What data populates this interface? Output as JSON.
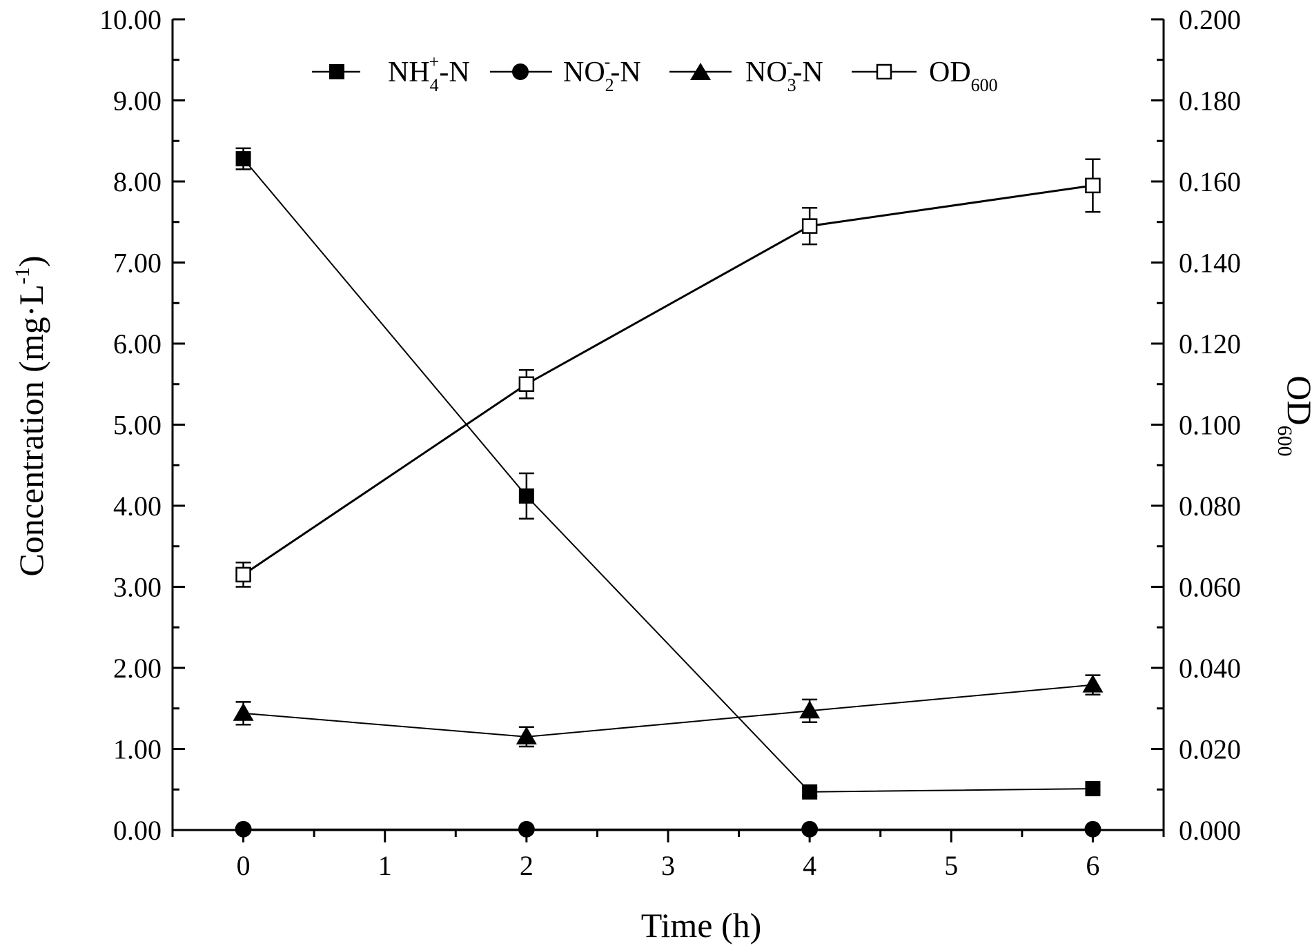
{
  "chart_data": {
    "type": "line",
    "x_axis": {
      "label": "Time (h)",
      "range": [
        -0.5,
        6.5
      ],
      "ticks": [
        0,
        1,
        2,
        3,
        4,
        5,
        6
      ],
      "tick_labels": [
        "0",
        "1",
        "2",
        "3",
        "4",
        "5",
        "6"
      ]
    },
    "y_axis_left": {
      "label_main": "Concentration (mg·L",
      "label_sup": "-1",
      "label_close": ")",
      "range": [
        0,
        10
      ],
      "ticks": [
        0,
        1,
        2,
        3,
        4,
        5,
        6,
        7,
        8,
        9,
        10
      ],
      "tick_labels": [
        "0.00",
        "1.00",
        "2.00",
        "3.00",
        "4.00",
        "5.00",
        "6.00",
        "7.00",
        "8.00",
        "9.00",
        "10.00"
      ]
    },
    "y_axis_right": {
      "label_main": "OD",
      "label_sub": "600",
      "range": [
        0,
        0.2
      ],
      "ticks": [
        0,
        0.02,
        0.04,
        0.06,
        0.08,
        0.1,
        0.12,
        0.14,
        0.16,
        0.18,
        0.2
      ],
      "tick_labels": [
        "0.000",
        "0.020",
        "0.040",
        "0.060",
        "0.080",
        "0.100",
        "0.120",
        "0.140",
        "0.160",
        "0.180",
        "0.200"
      ]
    },
    "legend_position": "top-center",
    "grid": false,
    "series": [
      {
        "key": "nh4",
        "label_main": "NH",
        "label_sub": "4",
        "label_sup": "+",
        "label_tail": "-N",
        "axis": "left",
        "marker": "filled-square",
        "x": [
          0,
          2,
          4,
          6
        ],
        "y": [
          8.28,
          4.12,
          0.47,
          0.51
        ],
        "err": [
          0.13,
          0.28,
          0.05,
          0.04
        ]
      },
      {
        "key": "no2",
        "label_main": "NO",
        "label_sub": "2",
        "label_sup": "-",
        "label_tail": "-N",
        "axis": "left",
        "marker": "filled-circle",
        "x": [
          0,
          2,
          4,
          6
        ],
        "y": [
          0.01,
          0.01,
          0.01,
          0.01
        ],
        "err": [
          0,
          0,
          0,
          0
        ]
      },
      {
        "key": "no3",
        "label_main": "NO",
        "label_sub": "3",
        "label_sup": "-",
        "label_tail": "-N",
        "axis": "left",
        "marker": "filled-triangle",
        "x": [
          0,
          2,
          4,
          6
        ],
        "y": [
          1.44,
          1.15,
          1.47,
          1.79
        ],
        "err": [
          0.14,
          0.12,
          0.14,
          0.12
        ]
      },
      {
        "key": "od",
        "label_main": "OD",
        "label_sub": "600",
        "label_sup": "",
        "label_tail": "",
        "axis": "right",
        "marker": "open-square",
        "x": [
          0,
          2,
          4,
          6
        ],
        "y": [
          0.063,
          0.11,
          0.149,
          0.159
        ],
        "err": [
          0.003,
          0.0035,
          0.0045,
          0.0065
        ]
      }
    ]
  }
}
